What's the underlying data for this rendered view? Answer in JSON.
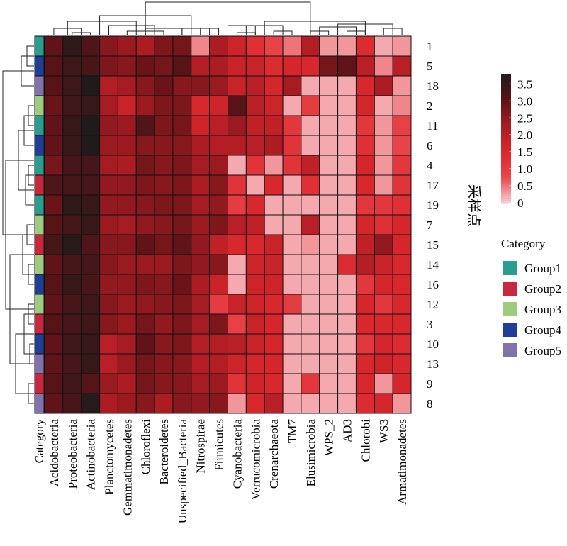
{
  "chart_data": {
    "type": "heatmap",
    "title": "",
    "ylabel": "采样点",
    "columns": [
      "Acidobacteria",
      "Proteobacteria",
      "Actinobacteria",
      "Planctomycetes",
      "Gemmatimonadetes",
      "Chloroflexi",
      "Bacteroidetes",
      "Unspecified_Bacteria",
      "Nitrospirae",
      "Firmicutes",
      "Cyanobacteria",
      "Verrucomicrobia",
      "Crenarchaeota",
      "TM7",
      "Elusimicrobia",
      "WPS_2",
      "AD3",
      "Chlorobi",
      "WS3",
      "Armatimonadetes"
    ],
    "rows": [
      "1",
      "5",
      "18",
      "2",
      "11",
      "6",
      "4",
      "17",
      "19",
      "7",
      "15",
      "14",
      "16",
      "12",
      "3",
      "10",
      "13",
      "9",
      "8"
    ],
    "category_label": "Category",
    "row_category": [
      "Group1",
      "Group4",
      "Group5",
      "Group3",
      "Group1",
      "Group4",
      "Group1",
      "Group2",
      "Group1",
      "Group3",
      "Group2",
      "Group3",
      "Group4",
      "Group3",
      "Group2",
      "Group4",
      "Group5",
      "Group2",
      "Group5"
    ],
    "values": [
      [
        3.0,
        3.6,
        3.2,
        2.6,
        2.4,
        2.2,
        2.7,
        2.8,
        0.4,
        2.2,
        1.7,
        1.3,
        0.8,
        0.5,
        2.1,
        0.3,
        0.3,
        1.4,
        0.2,
        0.3
      ],
      [
        3.1,
        3.4,
        3.3,
        2.7,
        2.6,
        2.9,
        2.8,
        3.1,
        2.1,
        2.2,
        1.8,
        1.8,
        1.4,
        1.6,
        1.5,
        2.8,
        3.0,
        2.0,
        0.4,
        2.0
      ],
      [
        3.1,
        3.4,
        3.8,
        2.1,
        2.3,
        2.6,
        2.9,
        2.6,
        2.6,
        2.4,
        1.8,
        2.0,
        1.6,
        2.3,
        0.2,
        0.2,
        0.2,
        1.5,
        2.2,
        0.3
      ],
      [
        2.9,
        3.4,
        3.5,
        2.3,
        1.8,
        2.4,
        2.7,
        2.7,
        1.5,
        1.7,
        3.1,
        2.0,
        1.7,
        0.2,
        1.0,
        0.2,
        0.2,
        1.6,
        0.2,
        0.4
      ],
      [
        3.0,
        3.5,
        3.8,
        2.5,
        2.4,
        3.2,
        2.7,
        2.8,
        1.7,
        2.0,
        2.4,
        1.9,
        1.9,
        1.1,
        0.2,
        0.2,
        0.2,
        1.1,
        0.3,
        0.9
      ],
      [
        3.0,
        3.5,
        3.8,
        2.4,
        2.4,
        2.6,
        2.6,
        2.6,
        2.2,
        2.1,
        2.1,
        2.0,
        2.2,
        1.2,
        0.2,
        0.2,
        0.2,
        1.3,
        0.3,
        0.8
      ],
      [
        2.8,
        3.3,
        3.3,
        2.3,
        2.2,
        2.8,
        2.6,
        2.7,
        2.3,
        2.4,
        0.2,
        1.2,
        0.3,
        1.2,
        1.9,
        0.2,
        0.2,
        1.6,
        0.3,
        1.1
      ],
      [
        3.2,
        3.3,
        3.3,
        2.5,
        2.5,
        2.7,
        2.6,
        2.7,
        2.2,
        2.6,
        1.2,
        0.2,
        1.5,
        0.2,
        1.3,
        0.2,
        0.2,
        1.5,
        0.3,
        1.2
      ],
      [
        2.9,
        3.6,
        3.5,
        2.5,
        2.5,
        2.6,
        2.7,
        2.7,
        2.3,
        2.5,
        1.0,
        1.5,
        0.2,
        0.2,
        0.2,
        0.2,
        0.2,
        1.1,
        1.1,
        1.3
      ],
      [
        3.1,
        3.3,
        3.5,
        2.4,
        2.3,
        2.5,
        2.6,
        2.8,
        2.4,
        2.7,
        2.0,
        1.9,
        0.2,
        0.2,
        2.0,
        0.2,
        0.2,
        1.6,
        1.3,
        1.6
      ],
      [
        3.3,
        3.7,
        3.2,
        2.6,
        2.6,
        3.0,
        2.8,
        3.0,
        2.5,
        1.9,
        1.5,
        1.5,
        1.8,
        0.2,
        0.3,
        0.2,
        0.2,
        1.9,
        2.5,
        1.6
      ],
      [
        3.0,
        3.3,
        3.3,
        2.6,
        2.4,
        2.4,
        2.4,
        2.7,
        2.5,
        2.6,
        0.2,
        1.7,
        1.8,
        0.2,
        0.2,
        0.2,
        1.4,
        2.1,
        1.8,
        1.5
      ],
      [
        3.1,
        3.5,
        3.3,
        2.5,
        2.5,
        2.7,
        2.6,
        2.9,
        2.2,
        1.8,
        0.2,
        1.7,
        1.7,
        0.2,
        0.2,
        0.2,
        0.2,
        1.1,
        1.6,
        1.5
      ],
      [
        3.0,
        3.3,
        3.4,
        2.6,
        2.4,
        2.5,
        2.6,
        2.7,
        2.3,
        1.0,
        1.8,
        1.7,
        1.5,
        1.0,
        0.2,
        0.2,
        0.2,
        1.6,
        1.1,
        1.5
      ],
      [
        3.1,
        3.3,
        3.4,
        2.6,
        2.4,
        2.8,
        2.5,
        2.7,
        2.3,
        2.7,
        0.9,
        1.8,
        1.6,
        0.2,
        0.2,
        0.2,
        0.2,
        1.5,
        1.5,
        1.5
      ],
      [
        3.0,
        3.4,
        3.5,
        2.0,
        2.3,
        3.0,
        2.6,
        2.7,
        2.1,
        2.1,
        2.0,
        1.8,
        1.6,
        0.2,
        0.2,
        0.2,
        0.2,
        1.1,
        1.6,
        1.4
      ],
      [
        3.0,
        3.3,
        3.5,
        2.0,
        2.4,
        2.8,
        2.6,
        2.6,
        2.1,
        2.1,
        1.7,
        1.6,
        1.6,
        0.2,
        0.2,
        0.2,
        0.2,
        1.5,
        1.7,
        1.5
      ],
      [
        3.1,
        3.4,
        3.1,
        2.4,
        2.2,
        2.8,
        2.6,
        2.6,
        2.3,
        2.4,
        1.2,
        1.7,
        1.5,
        0.2,
        1.1,
        0.2,
        0.2,
        1.5,
        0.3,
        1.6
      ],
      [
        3.0,
        3.3,
        3.7,
        2.2,
        2.4,
        2.6,
        2.2,
        2.6,
        2.5,
        2.6,
        0.3,
        1.5,
        2.0,
        0.2,
        0.2,
        0.2,
        0.2,
        1.4,
        1.6,
        0.3
      ]
    ],
    "colorbar": {
      "ticks": [
        "3.5",
        "3.0",
        "2.5",
        "2.0",
        "1.5",
        "1.0",
        "0.5",
        "0"
      ],
      "min": 0,
      "max": 3.8,
      "stops": [
        "#f7cdd1",
        "#e9454a",
        "#d9272c",
        "#a71b22",
        "#5c1317",
        "#1f1b1b"
      ]
    },
    "legend": {
      "title": "Category",
      "items": [
        {
          "label": "Group1",
          "color": "#2a9d8f"
        },
        {
          "label": "Group2",
          "color": "#c8273f"
        },
        {
          "label": "Group3",
          "color": "#9fcb7f"
        },
        {
          "label": "Group4",
          "color": "#1e3f95"
        },
        {
          "label": "Group5",
          "color": "#8172ab"
        }
      ]
    }
  }
}
